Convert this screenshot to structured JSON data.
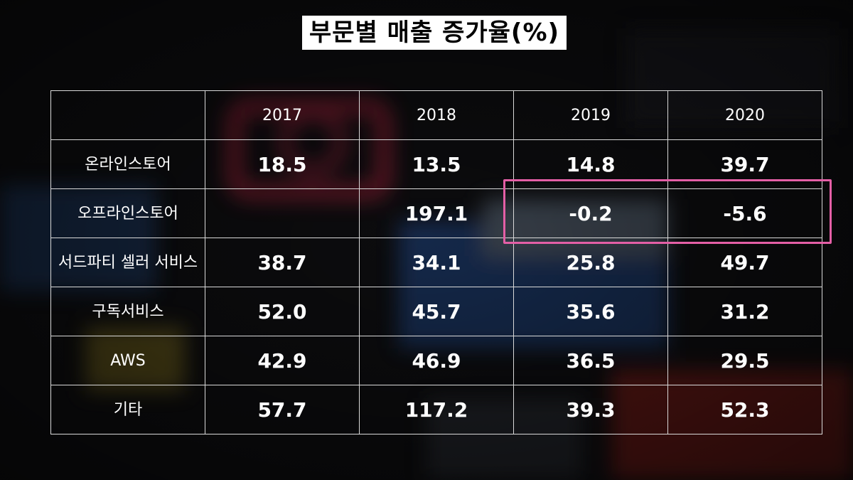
{
  "chart_data": {
    "type": "table",
    "title": "부문별 매출 증가율(%)",
    "columns": [
      "2017",
      "2018",
      "2019",
      "2020"
    ],
    "rows": [
      {
        "label": "온라인스토어",
        "values": [
          "18.5",
          "13.5",
          "14.8",
          "39.7"
        ]
      },
      {
        "label": "오프라인스토어",
        "values": [
          "",
          "197.1",
          "-0.2",
          "-5.6"
        ]
      },
      {
        "label": "서드파티 셀러 서비스",
        "values": [
          "38.7",
          "34.1",
          "25.8",
          "49.7"
        ]
      },
      {
        "label": "구독서비스",
        "values": [
          "52.0",
          "45.7",
          "35.6",
          "31.2"
        ]
      },
      {
        "label": "AWS",
        "values": [
          "42.9",
          "46.9",
          "36.5",
          "29.5"
        ]
      },
      {
        "label": "기타",
        "values": [
          "57.7",
          "117.2",
          "39.3",
          "52.3"
        ]
      }
    ],
    "highlight": {
      "row": "오프라인스토어",
      "columns": [
        "2019",
        "2020"
      ],
      "color": "#e45fa6"
    }
  }
}
